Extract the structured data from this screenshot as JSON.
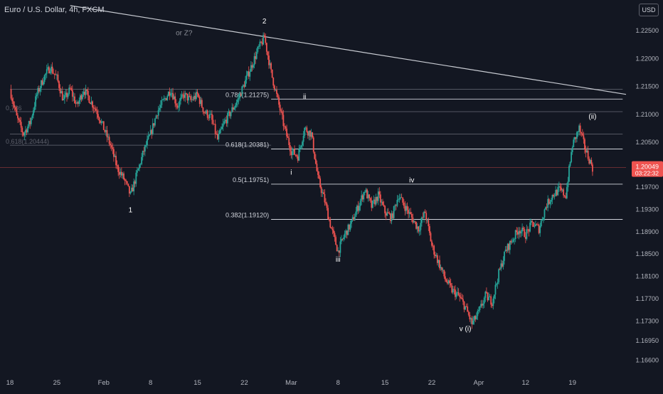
{
  "symbol_title": "Euro / U.S. Dollar, 4h, FXCM",
  "currency_badge": "USD",
  "colors": {
    "background": "#131722",
    "up": "#26a69a",
    "down": "#ef5350",
    "text": "#d1d4dc",
    "level_line": "#d1d4dc",
    "price_line": "#ef5350"
  },
  "chart_data": {
    "type": "candlestick",
    "x_tick_labels": [
      "18",
      "25",
      "Feb",
      "8",
      "15",
      "22",
      "Mar",
      "8",
      "15",
      "22",
      "Apr",
      "12",
      "19"
    ],
    "x_tick_positions": [
      0,
      7,
      14,
      21,
      28,
      35,
      42,
      49,
      56,
      63,
      70,
      77,
      84
    ],
    "y_tick_labels": [
      "1.16600",
      "1.16950",
      "1.17300",
      "1.17700",
      "1.18100",
      "1.18500",
      "1.18900",
      "1.19300",
      "1.19700",
      "1.20500",
      "1.21000",
      "1.21500",
      "1.22000",
      "1.22500"
    ],
    "y_tick_values": [
      1.166,
      1.1695,
      1.173,
      1.177,
      1.181,
      1.185,
      1.189,
      1.193,
      1.197,
      1.205,
      1.21,
      1.215,
      1.22,
      1.225
    ],
    "ylim": [
      1.164,
      1.2305
    ],
    "xlim": [
      0,
      92
    ],
    "current_price": {
      "value": 1.20049,
      "label": "1.20049",
      "countdown": "03:22:32"
    },
    "price_path": [
      {
        "d": 0,
        "p": 1.2145
      },
      {
        "d": 1,
        "p": 1.2095
      },
      {
        "d": 2,
        "p": 1.2065
      },
      {
        "d": 3,
        "p": 1.2085
      },
      {
        "d": 4,
        "p": 1.2135
      },
      {
        "d": 5,
        "p": 1.2165
      },
      {
        "d": 6,
        "p": 1.2185
      },
      {
        "d": 7,
        "p": 1.2165
      },
      {
        "d": 8,
        "p": 1.2125
      },
      {
        "d": 9,
        "p": 1.2145
      },
      {
        "d": 10,
        "p": 1.2115
      },
      {
        "d": 11,
        "p": 1.2145
      },
      {
        "d": 12,
        "p": 1.2125
      },
      {
        "d": 13,
        "p": 1.2105
      },
      {
        "d": 14,
        "p": 1.2075
      },
      {
        "d": 15,
        "p": 1.2045
      },
      {
        "d": 16,
        "p": 1.2005
      },
      {
        "d": 17,
        "p": 1.1985
      },
      {
        "d": 18,
        "p": 1.1955
      },
      {
        "d": 19,
        "p": 1.1995
      },
      {
        "d": 20,
        "p": 1.2035
      },
      {
        "d": 21,
        "p": 1.2065
      },
      {
        "d": 22,
        "p": 1.2105
      },
      {
        "d": 23,
        "p": 1.2125
      },
      {
        "d": 24,
        "p": 1.2145
      },
      {
        "d": 25,
        "p": 1.2115
      },
      {
        "d": 26,
        "p": 1.2135
      },
      {
        "d": 27,
        "p": 1.2125
      },
      {
        "d": 28,
        "p": 1.2135
      },
      {
        "d": 29,
        "p": 1.2105
      },
      {
        "d": 30,
        "p": 1.2095
      },
      {
        "d": 31,
        "p": 1.2055
      },
      {
        "d": 32,
        "p": 1.2085
      },
      {
        "d": 33,
        "p": 1.2105
      },
      {
        "d": 34,
        "p": 1.2125
      },
      {
        "d": 35,
        "p": 1.2155
      },
      {
        "d": 36,
        "p": 1.2185
      },
      {
        "d": 37,
        "p": 1.2215
      },
      {
        "d": 38,
        "p": 1.2238
      },
      {
        "d": 39,
        "p": 1.2175
      },
      {
        "d": 40,
        "p": 1.2125
      },
      {
        "d": 41,
        "p": 1.2075
      },
      {
        "d": 42,
        "p": 1.2035
      },
      {
        "d": 43,
        "p": 1.2025
      },
      {
        "d": 44,
        "p": 1.2075
      },
      {
        "d": 45,
        "p": 1.2065
      },
      {
        "d": 46,
        "p": 1.1985
      },
      {
        "d": 47,
        "p": 1.1945
      },
      {
        "d": 48,
        "p": 1.1895
      },
      {
        "d": 49,
        "p": 1.1855
      },
      {
        "d": 50,
        "p": 1.1885
      },
      {
        "d": 51,
        "p": 1.1905
      },
      {
        "d": 52,
        "p": 1.1935
      },
      {
        "d": 53,
        "p": 1.1965
      },
      {
        "d": 54,
        "p": 1.1935
      },
      {
        "d": 55,
        "p": 1.1955
      },
      {
        "d": 56,
        "p": 1.1925
      },
      {
        "d": 57,
        "p": 1.1915
      },
      {
        "d": 58,
        "p": 1.1955
      },
      {
        "d": 59,
        "p": 1.1935
      },
      {
        "d": 60,
        "p": 1.1915
      },
      {
        "d": 61,
        "p": 1.1895
      },
      {
        "d": 62,
        "p": 1.1925
      },
      {
        "d": 63,
        "p": 1.1865
      },
      {
        "d": 64,
        "p": 1.1835
      },
      {
        "d": 65,
        "p": 1.1805
      },
      {
        "d": 66,
        "p": 1.1785
      },
      {
        "d": 67,
        "p": 1.1775
      },
      {
        "d": 68,
        "p": 1.1755
      },
      {
        "d": 69,
        "p": 1.1725
      },
      {
        "d": 70,
        "p": 1.1745
      },
      {
        "d": 71,
        "p": 1.1775
      },
      {
        "d": 72,
        "p": 1.1765
      },
      {
        "d": 73,
        "p": 1.1815
      },
      {
        "d": 74,
        "p": 1.1855
      },
      {
        "d": 75,
        "p": 1.1875
      },
      {
        "d": 76,
        "p": 1.1895
      },
      {
        "d": 77,
        "p": 1.1885
      },
      {
        "d": 78,
        "p": 1.1905
      },
      {
        "d": 79,
        "p": 1.1895
      },
      {
        "d": 80,
        "p": 1.1935
      },
      {
        "d": 81,
        "p": 1.1955
      },
      {
        "d": 82,
        "p": 1.1965
      },
      {
        "d": 83,
        "p": 1.1955
      },
      {
        "d": 84,
        "p": 1.2045
      },
      {
        "d": 85,
        "p": 1.2075
      },
      {
        "d": 86,
        "p": 1.2035
      },
      {
        "d": 87,
        "p": 1.20049
      }
    ],
    "fib_levels": [
      {
        "label": "0.786(1.21275)",
        "value": 1.21275,
        "d_start": 39,
        "d_end": 91.5
      },
      {
        "label": "0.618(1.20381)",
        "value": 1.20381,
        "d_start": 39,
        "d_end": 91.5
      },
      {
        "label": "0.5(1.19751)",
        "value": 1.19751,
        "d_start": 39,
        "d_end": 91.5
      },
      {
        "label": "0.382(1.19120)",
        "value": 1.1912,
        "d_start": 39,
        "d_end": 91.5
      }
    ],
    "extra_levels": [
      {
        "value": 1.2145,
        "d_start": 0,
        "d_end": 91.5
      },
      {
        "value": 1.2105,
        "d_start": 0,
        "d_end": 91.5
      },
      {
        "value": 1.2065,
        "d_start": 0,
        "d_end": 91.5
      },
      {
        "value": 1.2045,
        "d_start": 0,
        "d_end": 39
      }
    ],
    "faded_level_labels": [
      "0.786",
      "0.618(1.20444)"
    ],
    "trendline": {
      "d1": 9,
      "p1": 1.2295,
      "d2": 92,
      "p2": 1.2136
    },
    "wave_labels": [
      {
        "text": "2",
        "d": 38,
        "p": 1.2263
      },
      {
        "text": "or Z?",
        "d": 26,
        "p": 1.2242
      },
      {
        "text": "1",
        "d": 18,
        "p": 1.1925
      },
      {
        "text": "ii",
        "d": 44,
        "p": 1.2128
      },
      {
        "text": "i",
        "d": 42,
        "p": 1.1992
      },
      {
        "text": "iii",
        "d": 49,
        "p": 1.1836
      },
      {
        "text": "iv",
        "d": 60,
        "p": 1.1978
      },
      {
        "text": "v (i)",
        "d": 68,
        "p": 1.1712
      },
      {
        "text": "(ii)",
        "d": 87,
        "p": 1.2092
      }
    ]
  }
}
